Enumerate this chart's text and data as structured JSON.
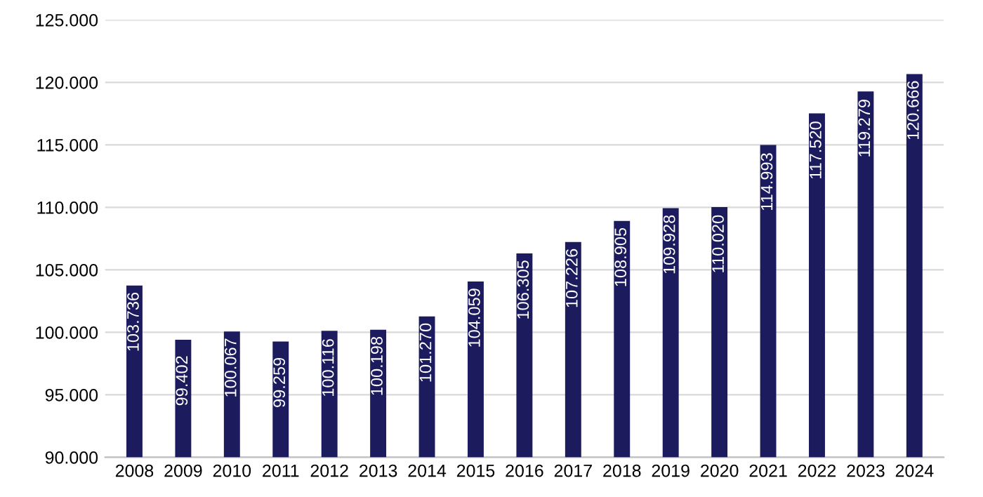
{
  "chart_data": {
    "type": "bar",
    "categories": [
      "2008",
      "2009",
      "2010",
      "2011",
      "2012",
      "2013",
      "2014",
      "2015",
      "2016",
      "2017",
      "2018",
      "2019",
      "2020",
      "2021",
      "2022",
      "2023",
      "2024"
    ],
    "values": [
      103736,
      99402,
      100067,
      99259,
      100116,
      100198,
      101270,
      104059,
      106305,
      107226,
      108905,
      109928,
      110020,
      114993,
      117520,
      119279,
      120666
    ],
    "value_labels": [
      "103.736",
      "99.402",
      "100.067",
      "99.259",
      "100.116",
      "100.198",
      "101.270",
      "104.059",
      "106.305",
      "107.226",
      "108.905",
      "109.928",
      "110.020",
      "114.993",
      "117.520",
      "119.279",
      "120.666"
    ],
    "color": "#1b1b5e",
    "ylim": [
      90000,
      125000
    ],
    "yticks": [
      {
        "value": 90000,
        "label": "90.000"
      },
      {
        "value": 95000,
        "label": "95.000"
      },
      {
        "value": 100000,
        "label": "100.000"
      },
      {
        "value": 105000,
        "label": "105.000"
      },
      {
        "value": 110000,
        "label": "110.000"
      },
      {
        "value": 115000,
        "label": "115.000"
      },
      {
        "value": 120000,
        "label": "120.000"
      },
      {
        "value": 125000,
        "label": "125.000"
      }
    ],
    "grid": "y",
    "legend": false
  }
}
